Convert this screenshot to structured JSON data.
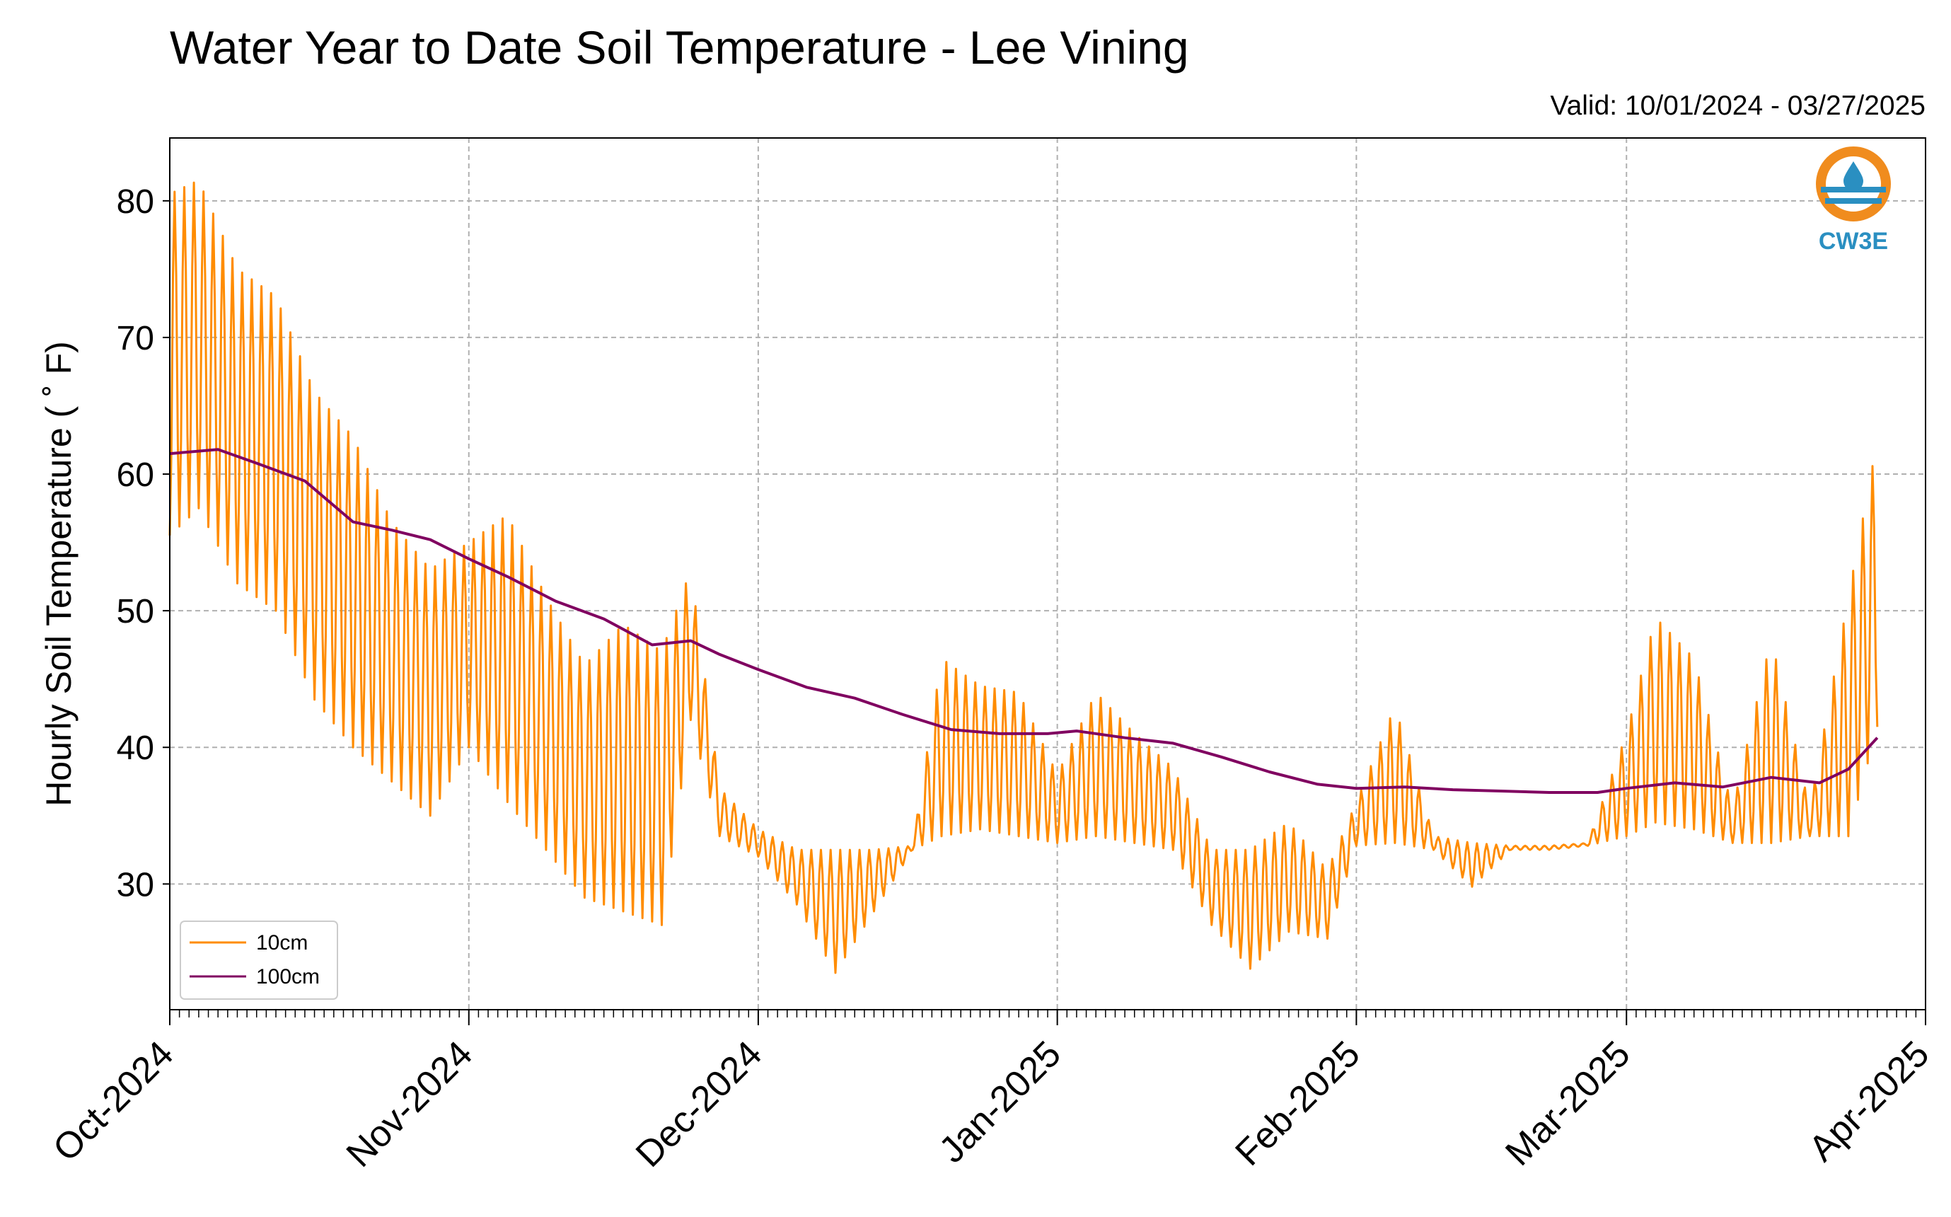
{
  "chart_data": {
    "type": "line",
    "title": "Water Year to Date Soil Temperature - Lee Vining",
    "subtitle": "Valid: 10/01/2024 - 03/27/2025",
    "xlabel": "",
    "ylabel": "Hourly Soil Temperature ($^\\circ$F)",
    "ylabel_display": "Hourly Soil Temperature ( ˚ F)",
    "xlim": [
      "2024-10-01",
      "2025-04-01"
    ],
    "ylim": [
      20.8,
      84.6
    ],
    "grid": true,
    "legend_position": "lower-left",
    "x_ticks": [
      {
        "date": "2024-10-01",
        "label": "Oct-2024"
      },
      {
        "date": "2024-11-01",
        "label": "Nov-2024"
      },
      {
        "date": "2024-12-01",
        "label": "Dec-2024"
      },
      {
        "date": "2025-01-01",
        "label": "Jan-2025"
      },
      {
        "date": "2025-02-01",
        "label": "Feb-2025"
      },
      {
        "date": "2025-03-01",
        "label": "Mar-2025"
      },
      {
        "date": "2025-04-01",
        "label": "Apr-2025"
      }
    ],
    "y_ticks": [
      30,
      40,
      50,
      60,
      70,
      80
    ],
    "series": [
      {
        "name": "10cm",
        "color": "#ff8c00",
        "x": [
          "2024-10-01",
          "2024-10-04",
          "2024-10-08",
          "2024-10-12",
          "2024-10-16",
          "2024-10-20",
          "2024-10-24",
          "2024-10-28",
          "2024-11-01",
          "2024-11-05",
          "2024-11-09",
          "2024-11-13",
          "2024-11-17",
          "2024-11-21",
          "2024-11-24",
          "2024-11-27",
          "2024-12-01",
          "2024-12-05",
          "2024-12-09",
          "2024-12-13",
          "2024-12-17",
          "2024-12-20",
          "2024-12-24",
          "2024-12-28",
          "2025-01-01",
          "2025-01-05",
          "2025-01-09",
          "2025-01-13",
          "2025-01-17",
          "2025-01-21",
          "2025-01-25",
          "2025-01-29",
          "2025-02-01",
          "2025-02-05",
          "2025-02-09",
          "2025-02-13",
          "2025-02-17",
          "2025-02-21",
          "2025-02-25",
          "2025-03-01",
          "2025-03-04",
          "2025-03-08",
          "2025-03-12",
          "2025-03-16",
          "2025-03-20",
          "2025-03-24",
          "2025-03-27"
        ],
        "daily_max": [
          80.5,
          81.5,
          75.0,
          73.0,
          66.0,
          62.7,
          56.5,
          53.0,
          55.0,
          57.0,
          51.0,
          46.0,
          49.0,
          47.0,
          53.0,
          37.0,
          34.0,
          32.5,
          32.5,
          32.5,
          32.8,
          46.5,
          44.5,
          44.0,
          38.0,
          44.0,
          41.0,
          38.5,
          32.5,
          32.5,
          34.5,
          31.0,
          36.0,
          43.0,
          33.5,
          33.0,
          32.8,
          32.8,
          33.0,
          41.0,
          49.5,
          46.5,
          35.5,
          48.0,
          35.5,
          51.0,
          62.5
        ],
        "daily_min": [
          55.5,
          57.5,
          52.0,
          50.0,
          43.5,
          40.0,
          37.5,
          35.0,
          40.0,
          36.0,
          32.5,
          29.0,
          28.0,
          27.0,
          42.0,
          33.5,
          32.0,
          28.5,
          23.5,
          28.0,
          32.5,
          33.5,
          34.0,
          33.5,
          33.0,
          33.5,
          33.0,
          32.5,
          27.0,
          23.8,
          26.5,
          26.0,
          32.8,
          33.0,
          32.5,
          29.8,
          32.5,
          32.5,
          32.8,
          33.5,
          34.5,
          34.0,
          33.0,
          33.0,
          33.5,
          33.5,
          41.5
        ]
      },
      {
        "name": "100cm",
        "color": "#800060",
        "x": [
          "2024-10-01",
          "2024-10-06",
          "2024-10-10",
          "2024-10-15",
          "2024-10-20",
          "2024-10-24",
          "2024-10-28",
          "2024-11-01",
          "2024-11-05",
          "2024-11-10",
          "2024-11-15",
          "2024-11-20",
          "2024-11-24",
          "2024-11-27",
          "2024-12-01",
          "2024-12-06",
          "2024-12-11",
          "2024-12-16",
          "2024-12-21",
          "2024-12-26",
          "2024-12-31",
          "2025-01-03",
          "2025-01-08",
          "2025-01-13",
          "2025-01-18",
          "2025-01-23",
          "2025-01-28",
          "2025-02-01",
          "2025-02-06",
          "2025-02-11",
          "2025-02-16",
          "2025-02-21",
          "2025-02-26",
          "2025-03-01",
          "2025-03-06",
          "2025-03-11",
          "2025-03-16",
          "2025-03-21",
          "2025-03-24",
          "2025-03-27"
        ],
        "values": [
          61.5,
          61.8,
          60.8,
          59.5,
          56.5,
          55.9,
          55.2,
          53.8,
          52.5,
          50.7,
          49.4,
          47.5,
          47.8,
          46.8,
          45.7,
          44.4,
          43.6,
          42.4,
          41.3,
          41.0,
          41.0,
          41.2,
          40.7,
          40.3,
          39.3,
          38.2,
          37.3,
          37.0,
          37.1,
          36.9,
          36.8,
          36.7,
          36.7,
          37.0,
          37.4,
          37.1,
          37.8,
          37.4,
          38.4,
          40.7
        ]
      }
    ]
  },
  "legend": {
    "series_1_label": "10cm",
    "series_2_label": "100cm"
  },
  "logo": {
    "text": "CW3E",
    "ring_color": "#f08c1e",
    "wave_color": "#2a8fc1"
  }
}
